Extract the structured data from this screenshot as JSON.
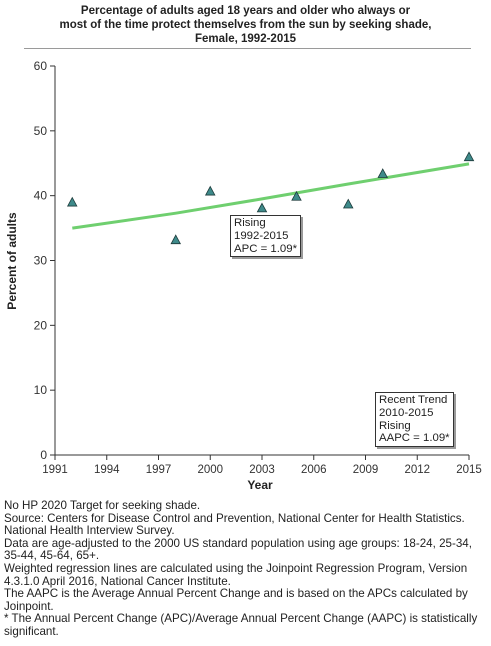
{
  "title_lines": [
    "Percentage of adults aged 18 years and older who always or",
    "most of the time protect themselves from the sun by seeking shade,",
    "Female,  1992-2015"
  ],
  "chart_data": {
    "type": "scatter",
    "xlabel": "Year",
    "ylabel": "Percent of adults",
    "xlim": [
      1991,
      2015
    ],
    "ylim": [
      0,
      60
    ],
    "x_ticks": [
      1991,
      1994,
      1997,
      2000,
      2003,
      2006,
      2009,
      2012,
      2015
    ],
    "y_ticks": [
      0,
      10,
      20,
      30,
      40,
      50,
      60
    ],
    "grid": false,
    "points": [
      {
        "x": 1992,
        "y": 39.0
      },
      {
        "x": 1998,
        "y": 33.2
      },
      {
        "x": 2000,
        "y": 40.7
      },
      {
        "x": 2003,
        "y": 38.1
      },
      {
        "x": 2005,
        "y": 39.9
      },
      {
        "x": 2008,
        "y": 38.7
      },
      {
        "x": 2010,
        "y": 43.4
      },
      {
        "x": 2015,
        "y": 46.0
      }
    ],
    "trend_line": [
      {
        "x": 1992,
        "y": 35.0
      },
      {
        "x": 1998,
        "y": 37.3
      },
      {
        "x": 2003,
        "y": 39.5
      },
      {
        "x": 2008,
        "y": 41.8
      },
      {
        "x": 2015,
        "y": 44.9
      }
    ],
    "colors": {
      "points": "#3e8a8a",
      "trend": "#6fcf6f",
      "axis": "#333333"
    }
  },
  "annotations": {
    "trend_box": [
      "Rising",
      "1992-2015",
      "APC =  1.09*"
    ],
    "recent_box": [
      "Recent Trend",
      "2010-2015",
      "Rising",
      "AAPC =  1.09*"
    ]
  },
  "notes": [
    "No HP 2020 Target for seeking shade.",
    "Source: Centers for Disease Control and Prevention, National Center for Health Statistics. National Health Interview Survey.",
    "Data are age-adjusted to the 2000 US standard population using age groups: 18-24, 25-34, 35-44, 45-64, 65+.",
    "Weighted regression lines are calculated using the Joinpoint Regression Program, Version 4.3.1.0 April 2016, National Cancer Institute.",
    "The AAPC is the Average Annual Percent Change and is based on the APCs calculated by Joinpoint.",
    "* The Annual Percent Change (APC)/Average Annual Percent Change (AAPC) is statistically significant."
  ]
}
